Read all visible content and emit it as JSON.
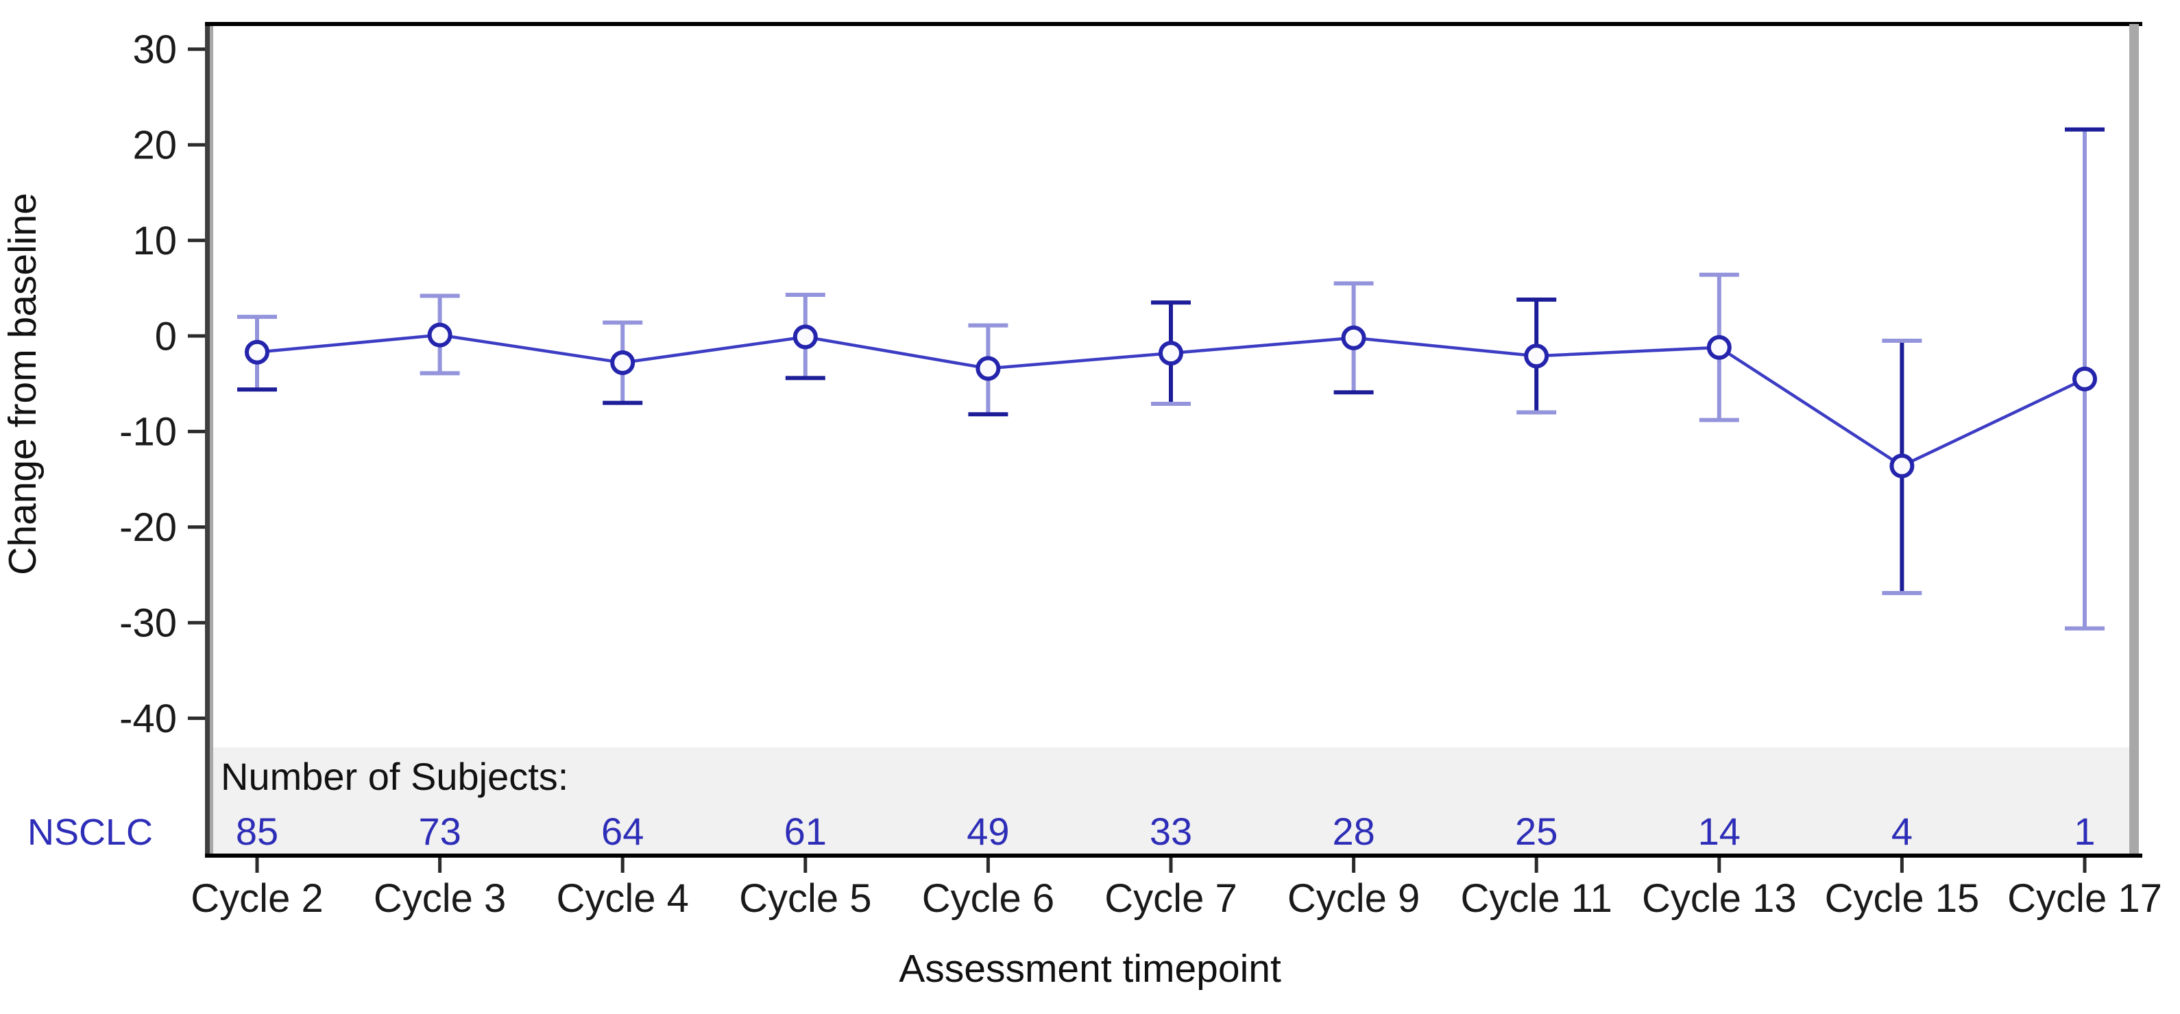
{
  "chart_data": {
    "type": "line",
    "title": "",
    "ylabel": "Change from baseline",
    "xlabel": "Assessment timepoint",
    "ylim": [
      -43,
      32.5
    ],
    "yticks": [
      30,
      20,
      10,
      0,
      -10,
      -20,
      -30,
      -40
    ],
    "grid": false,
    "legend": null,
    "x": [
      "Cycle 2",
      "Cycle 3",
      "Cycle 4",
      "Cycle 5",
      "Cycle 6",
      "Cycle 7",
      "Cycle 9",
      "Cycle 11",
      "Cycle 13",
      "Cycle 15",
      "Cycle 17"
    ],
    "series": [
      {
        "name": "NSCLC",
        "values": [
          -1.7,
          0.1,
          -2.8,
          -0.1,
          -3.4,
          -1.8,
          -0.2,
          -2.1,
          -1.2,
          -13.6,
          -4.5
        ],
        "error_low": [
          -5.6,
          -3.9,
          -7.0,
          -4.4,
          -8.2,
          -7.1,
          -5.9,
          -8.0,
          -8.8,
          -26.9,
          -30.6
        ],
        "error_high": [
          2.0,
          4.2,
          1.4,
          4.3,
          1.1,
          3.5,
          5.5,
          3.8,
          6.4,
          -0.5,
          21.6
        ],
        "bar_shade": [
          "light",
          "light",
          "light",
          "light",
          "light",
          "dark",
          "light",
          "dark",
          "light",
          "dark",
          "light"
        ],
        "cap_top_shade": [
          "light",
          "light",
          "light",
          "light",
          "light",
          "dark",
          "light",
          "dark",
          "light",
          "light",
          "dark"
        ],
        "cap_bottom_shade": [
          "dark",
          "light",
          "dark",
          "dark",
          "dark",
          "light",
          "dark",
          "light",
          "light",
          "light",
          "light"
        ]
      }
    ]
  },
  "subjects": {
    "heading": "Number of Subjects:",
    "row_label": "NSCLC",
    "counts": [
      85,
      73,
      64,
      61,
      49,
      33,
      28,
      25,
      14,
      4,
      1
    ]
  },
  "colors": {
    "line": "#3c3cc4",
    "marker_stroke": "#2424ad",
    "marker_fill": "#fbfbff",
    "errorbar_light": "#9494dc",
    "errorbar_dark": "#1d1d99",
    "tick_text": "#1a1a1a",
    "subjects_text": "#2d2db8",
    "band_fill": "#f1f1f1",
    "axis_dark": "#3f3f3f",
    "axis_shadow": "#a8a8a8",
    "axis_black": "#000000"
  }
}
